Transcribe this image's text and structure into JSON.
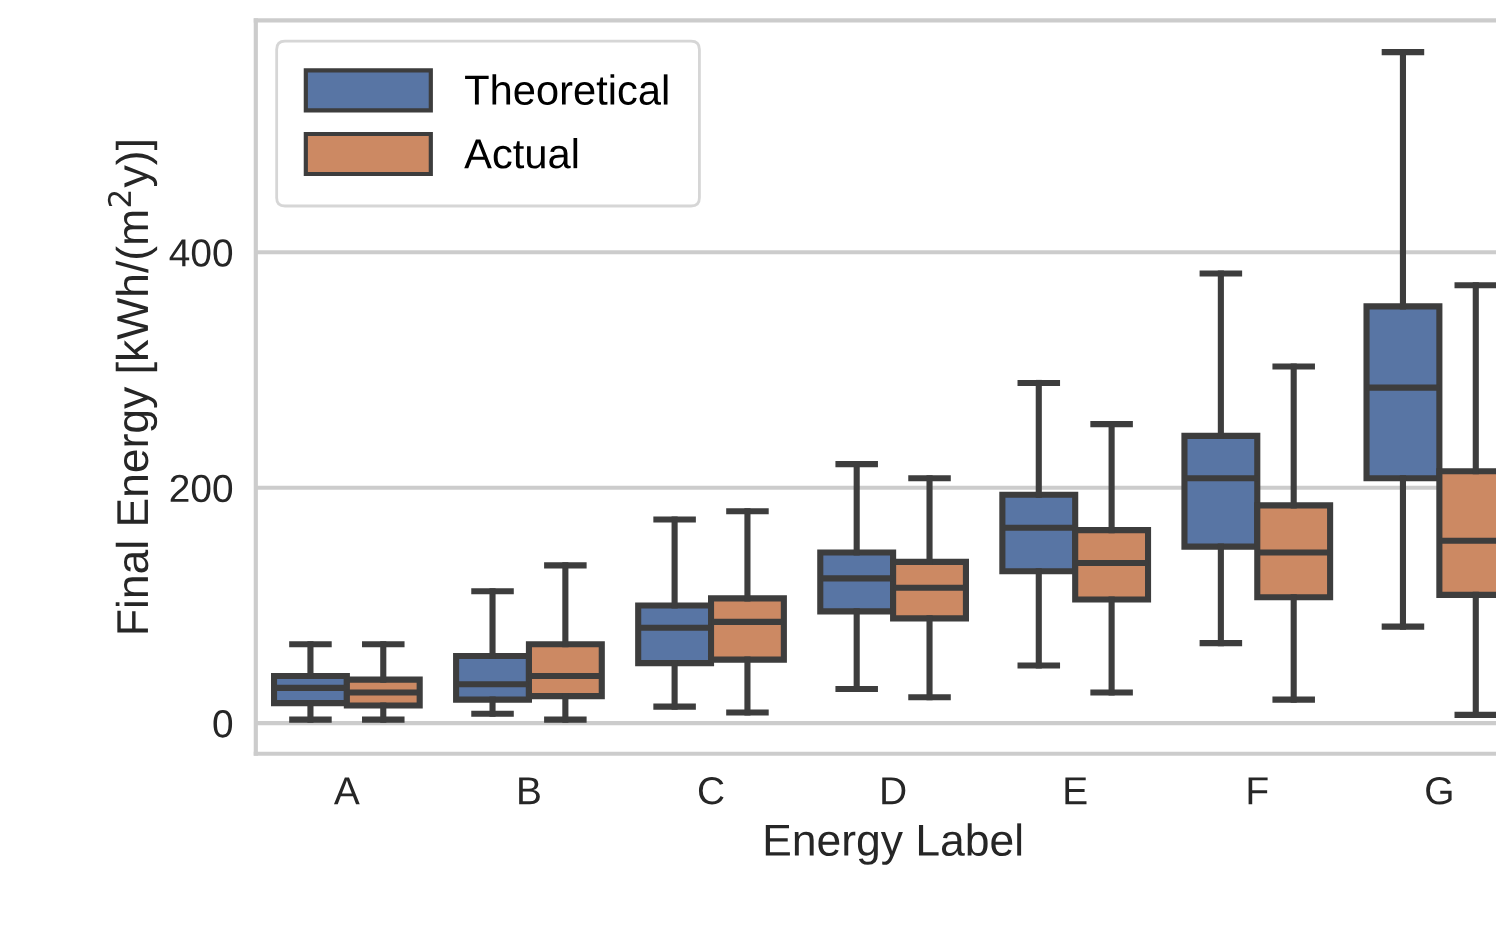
{
  "chart_data": {
    "type": "box",
    "xlabel": "Energy Label",
    "ylabel": "Final Energy [kWh/(m$^{2}$y)]",
    "categories": [
      "A",
      "B",
      "C",
      "D",
      "E",
      "F",
      "G"
    ],
    "ylim": [
      -26,
      597
    ],
    "yticks": [
      0,
      200,
      400
    ],
    "grid": "y",
    "legend": "top left",
    "series": [
      {
        "name": "Theoretical",
        "color": "#5875a4",
        "boxes": [
          {
            "low": 3,
            "q1": 17,
            "median": 30,
            "q3": 40,
            "high": 67
          },
          {
            "low": 8,
            "q1": 20,
            "median": 33,
            "q3": 57,
            "high": 112
          },
          {
            "low": 14,
            "q1": 51,
            "median": 81,
            "q3": 100,
            "high": 173
          },
          {
            "low": 29,
            "q1": 95,
            "median": 123,
            "q3": 145,
            "high": 220
          },
          {
            "low": 49,
            "q1": 129,
            "median": 166,
            "q3": 194,
            "high": 289
          },
          {
            "low": 68,
            "q1": 150,
            "median": 208,
            "q3": 244,
            "high": 382
          },
          {
            "low": 82,
            "q1": 208,
            "median": 285,
            "q3": 354,
            "high": 570
          }
        ]
      },
      {
        "name": "Actual",
        "color": "#cc8963",
        "boxes": [
          {
            "low": 3,
            "q1": 15,
            "median": 26,
            "q3": 37,
            "high": 67
          },
          {
            "low": 3,
            "q1": 23,
            "median": 40,
            "q3": 67,
            "high": 134
          },
          {
            "low": 9,
            "q1": 54,
            "median": 86,
            "q3": 106,
            "high": 180
          },
          {
            "low": 22,
            "q1": 89,
            "median": 115,
            "q3": 137,
            "high": 208
          },
          {
            "low": 26,
            "q1": 105,
            "median": 136,
            "q3": 164,
            "high": 254
          },
          {
            "low": 20,
            "q1": 107,
            "median": 145,
            "q3": 185,
            "high": 303
          },
          {
            "low": 7,
            "q1": 109,
            "median": 155,
            "q3": 214,
            "high": 372
          }
        ]
      }
    ]
  }
}
